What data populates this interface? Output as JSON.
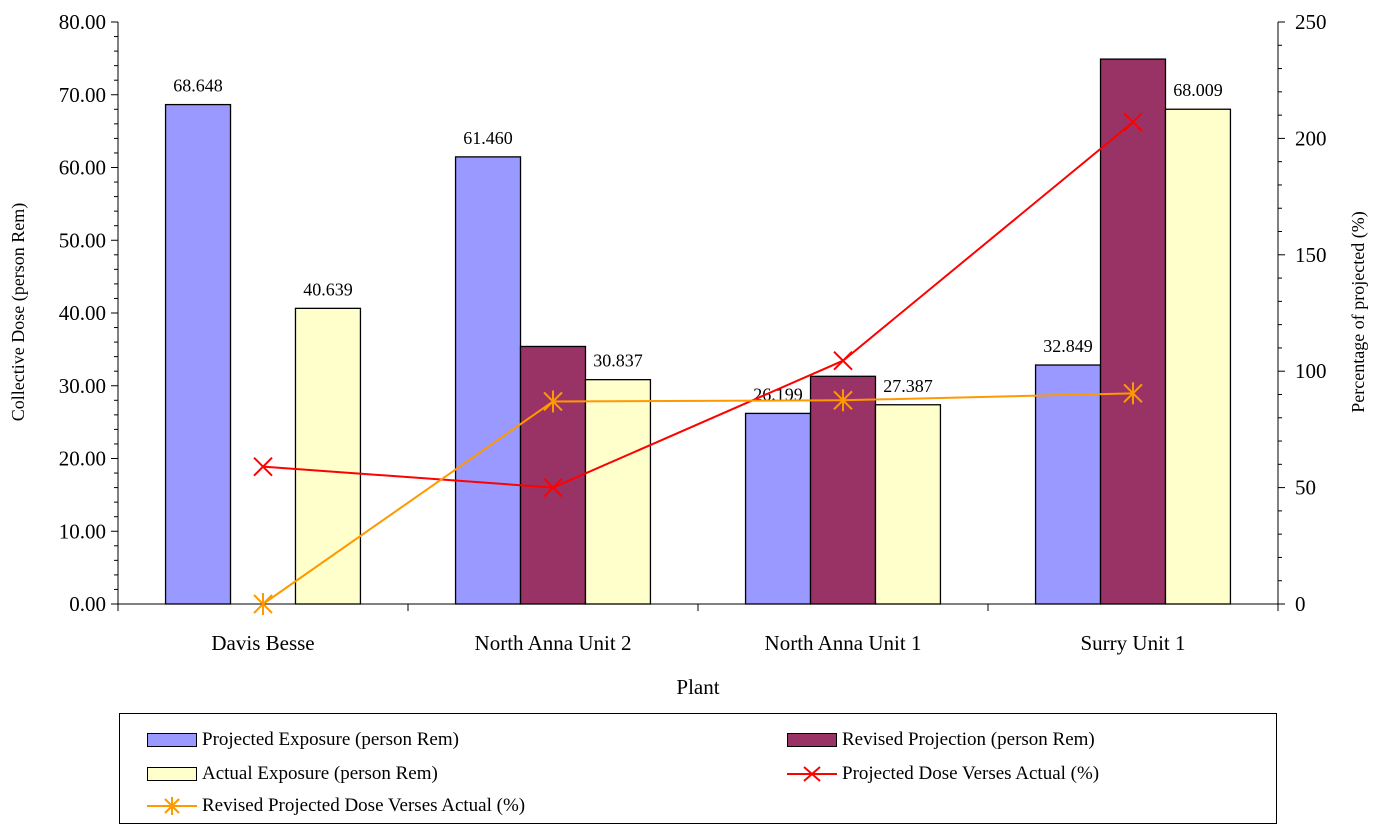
{
  "chart_data": {
    "type": "bar",
    "title": "",
    "xlabel": "Plant",
    "ylabel": "Collective Dose (person Rem)",
    "y2label": "Percentage of projected (%)",
    "ylim": [
      0,
      80
    ],
    "y2lim": [
      0,
      250
    ],
    "yticks": [
      "0.00",
      "10.00",
      "20.00",
      "30.00",
      "40.00",
      "50.00",
      "60.00",
      "70.00",
      "80.00"
    ],
    "y2ticks": [
      "0",
      "50",
      "100",
      "150",
      "200",
      "250"
    ],
    "categories": [
      "Davis Besse",
      "North Anna Unit 2",
      "North Anna Unit 1",
      "Surry Unit 1"
    ],
    "bar_series": [
      {
        "name": "Projected Exposure (person Rem)",
        "color": "#9999ff",
        "values": [
          68.648,
          61.46,
          26.199,
          32.849
        ],
        "labels": [
          "68.648",
          "61.460",
          "26.199",
          "32.849"
        ]
      },
      {
        "name": "Revised Projection (person Rem)",
        "color": "#993366",
        "values": [
          null,
          35.4,
          31.3,
          74.9
        ],
        "labels": [
          "",
          "",
          "",
          ""
        ]
      },
      {
        "name": "Actual Exposure (person Rem)",
        "color": "#ffffcc",
        "values": [
          40.639,
          30.837,
          27.387,
          68.009
        ],
        "labels": [
          "40.639",
          "30.837",
          "27.387",
          "68.009"
        ]
      }
    ],
    "line_series": [
      {
        "name": "Projected Dose Verses Actual (%)",
        "color": "#ff0000",
        "marker": "x",
        "axis": "right",
        "values": [
          59,
          50,
          104.5,
          207
        ]
      },
      {
        "name": "Revised Projected Dose Verses Actual (%)",
        "color": "#ff9900",
        "marker": "star",
        "axis": "right",
        "values": [
          0,
          87,
          87.5,
          90.5
        ]
      }
    ],
    "grid": false,
    "legend_position": "bottom"
  }
}
